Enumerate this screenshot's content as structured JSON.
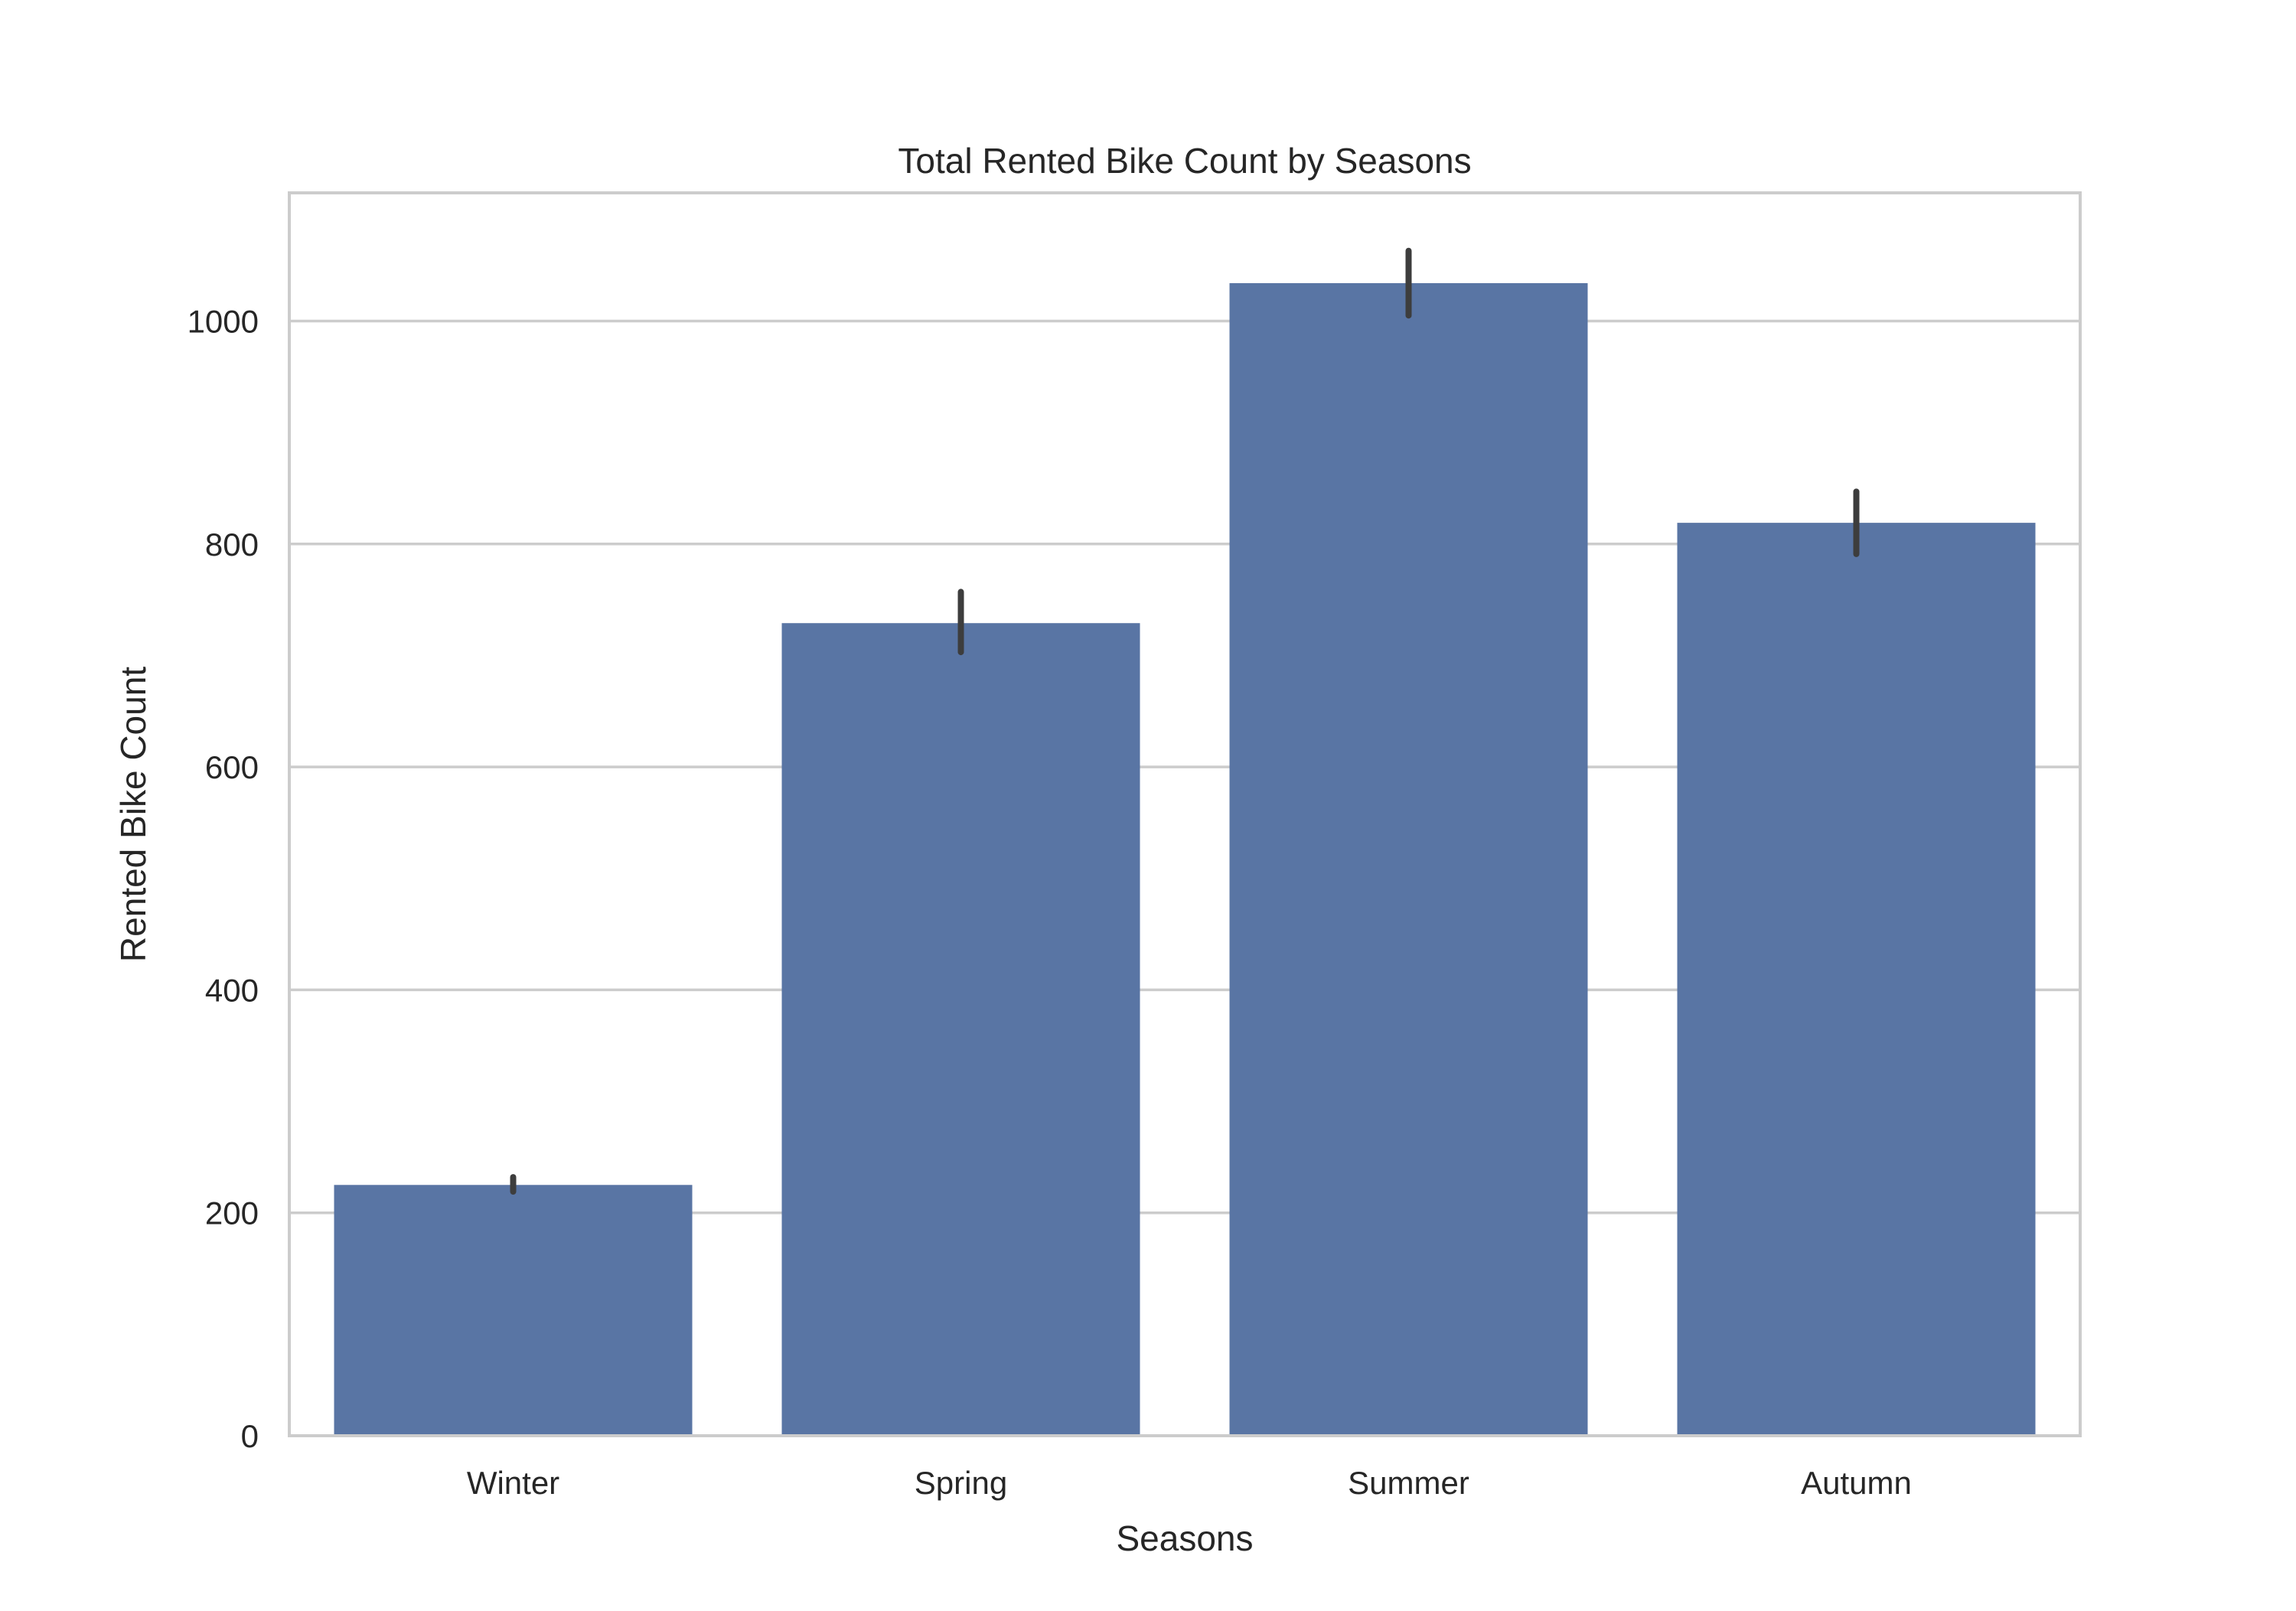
{
  "chart_data": {
    "type": "bar",
    "title": "Total Rented Bike Count by Seasons",
    "xlabel": "Seasons",
    "ylabel": "Rented Bike Count",
    "categories": [
      "Winter",
      "Spring",
      "Summer",
      "Autumn"
    ],
    "values": [
      225,
      729,
      1034,
      819
    ],
    "error_low": [
      219,
      703,
      1005,
      791
    ],
    "error_high": [
      232,
      757,
      1063,
      847
    ],
    "ylim": [
      0,
      1115
    ],
    "yticks": [
      0,
      200,
      400,
      600,
      800,
      1000
    ],
    "grid": "horizontal",
    "bar_color": "#5975a4",
    "error_color": "#3d3d3d"
  }
}
